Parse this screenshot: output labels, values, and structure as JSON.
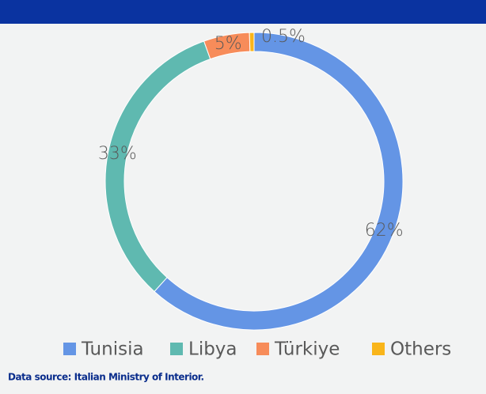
{
  "chart_data": {
    "type": "donut",
    "categories": [
      "Tunisia",
      "Libya",
      "Türkiye",
      "Others"
    ],
    "values": [
      62,
      33,
      5,
      0.5
    ],
    "value_labels": [
      "62%",
      "33%",
      "5%",
      "0.5%"
    ],
    "colors": [
      "#6495e5",
      "#5fb9b0",
      "#f78c5a",
      "#f9b51a"
    ],
    "source": "Data source: Italian Ministry of Interior."
  }
}
